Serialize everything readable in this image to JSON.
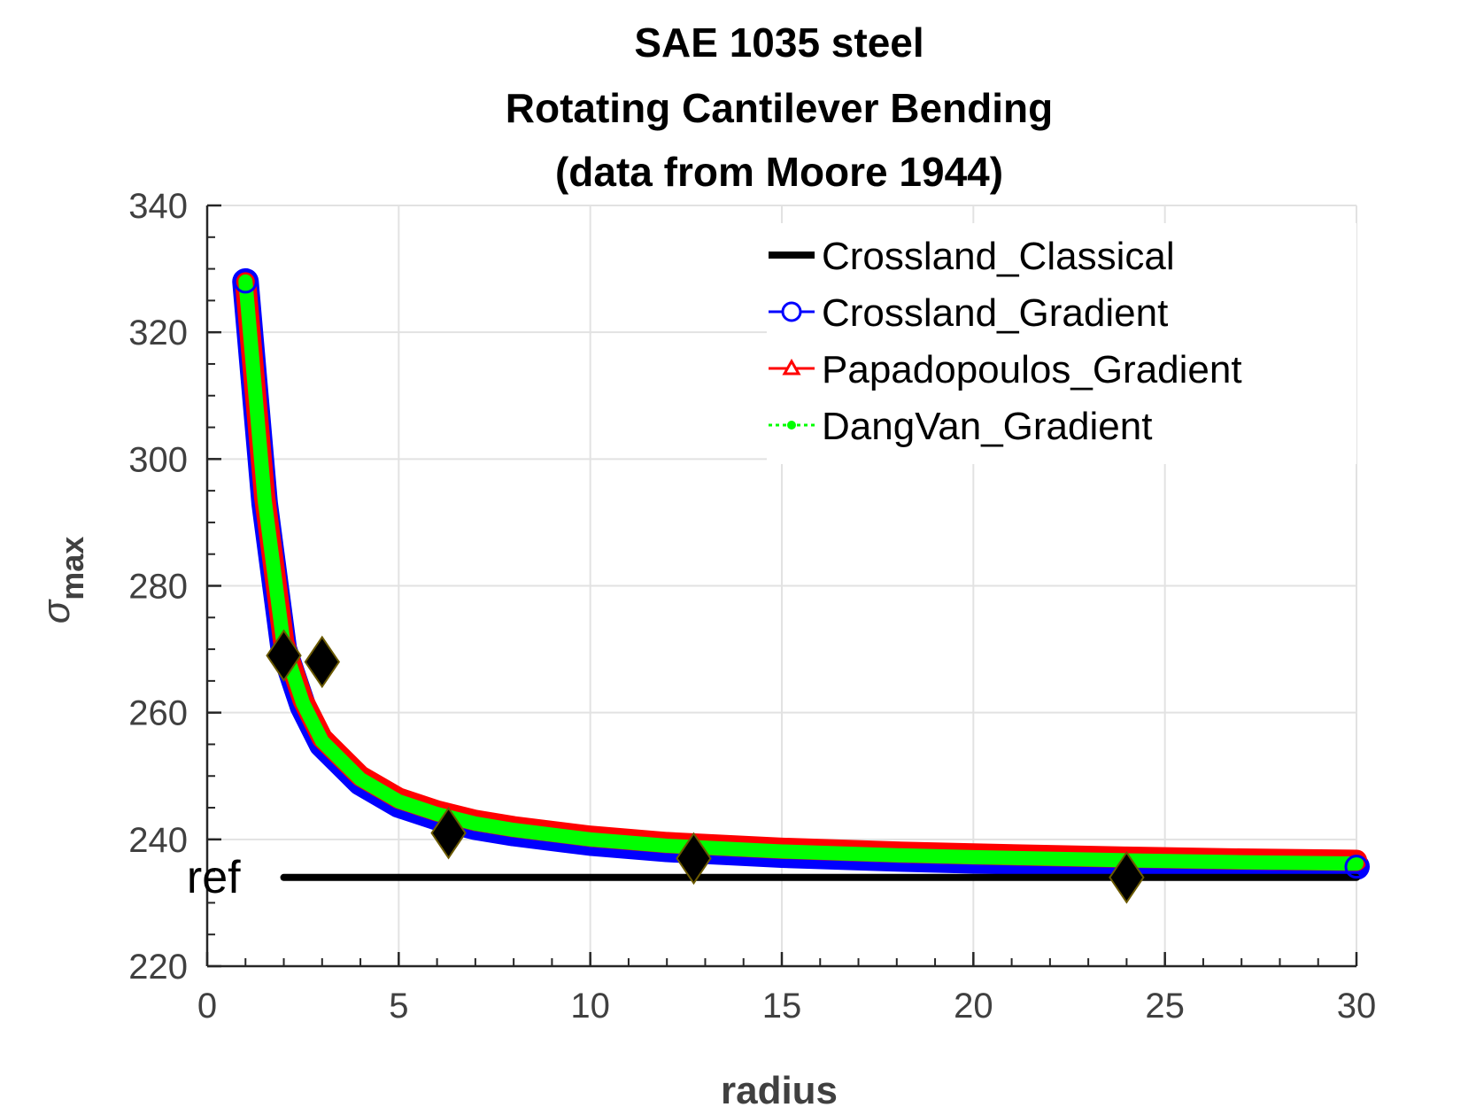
{
  "chart_data": {
    "type": "line",
    "title_lines": [
      "SAE 1035 steel",
      "Rotating Cantilever Bending",
      "(data from Moore 1944)"
    ],
    "xlabel": "radius",
    "ylabel_symbol": "σ",
    "ylabel_subscript": "max",
    "xlim": [
      0,
      30
    ],
    "ylim": [
      220,
      340
    ],
    "xticks": [
      0,
      5,
      10,
      15,
      20,
      25,
      30
    ],
    "yticks": [
      220,
      240,
      260,
      280,
      300,
      320,
      340
    ],
    "grid": true,
    "legend_position": "top-right",
    "series": [
      {
        "name": "Crossland_Classical",
        "color": "#000000",
        "style": "solid",
        "marker": "none",
        "x": [
          2,
          30
        ],
        "y": [
          234,
          234
        ]
      },
      {
        "name": "Crossland_Gradient",
        "color": "#0000ff",
        "style": "solid",
        "marker": "circle",
        "x": [
          1,
          1.5,
          2,
          2.5,
          3,
          4,
          5,
          6,
          7,
          8,
          10,
          12,
          15,
          18,
          20,
          24,
          27,
          30
        ],
        "y": [
          328,
          293,
          270,
          261,
          255,
          249,
          245.5,
          243.5,
          242,
          241,
          239.5,
          238.5,
          237.6,
          237,
          236.7,
          236.2,
          235.9,
          235.7
        ]
      },
      {
        "name": "Papadopoulos_Gradient",
        "color": "#ff0000",
        "style": "solid",
        "marker": "triangle",
        "x": [
          1,
          1.5,
          2,
          2.5,
          3,
          4,
          5,
          6,
          7,
          8,
          10,
          12,
          15,
          18,
          20,
          24,
          27,
          30
        ],
        "y": [
          328,
          294,
          271,
          262,
          256,
          250,
          246.5,
          244.5,
          243,
          242,
          240.5,
          239.5,
          238.6,
          238,
          237.7,
          237.2,
          236.9,
          236.7
        ]
      },
      {
        "name": "DangVan_Gradient",
        "color": "#00ff00",
        "style": "dotted",
        "marker": "dot",
        "x": [
          1,
          1.5,
          2,
          2.5,
          3,
          4,
          5,
          6,
          7,
          8,
          10,
          12,
          15,
          18,
          20,
          24,
          27,
          30
        ],
        "y": [
          328,
          293.5,
          270.5,
          261.5,
          255.5,
          249.5,
          246,
          244,
          242.5,
          241.5,
          240,
          239,
          238.1,
          237.5,
          237.2,
          236.7,
          236.4,
          236.2
        ]
      }
    ],
    "experimental_points": {
      "marker": "diamond",
      "color": "#000000",
      "x": [
        2,
        3,
        6.3,
        12.7,
        24
      ],
      "y": [
        269,
        268,
        241,
        237,
        234
      ]
    },
    "annotations": [
      {
        "text": "ref",
        "x": 1,
        "y": 234
      }
    ]
  }
}
